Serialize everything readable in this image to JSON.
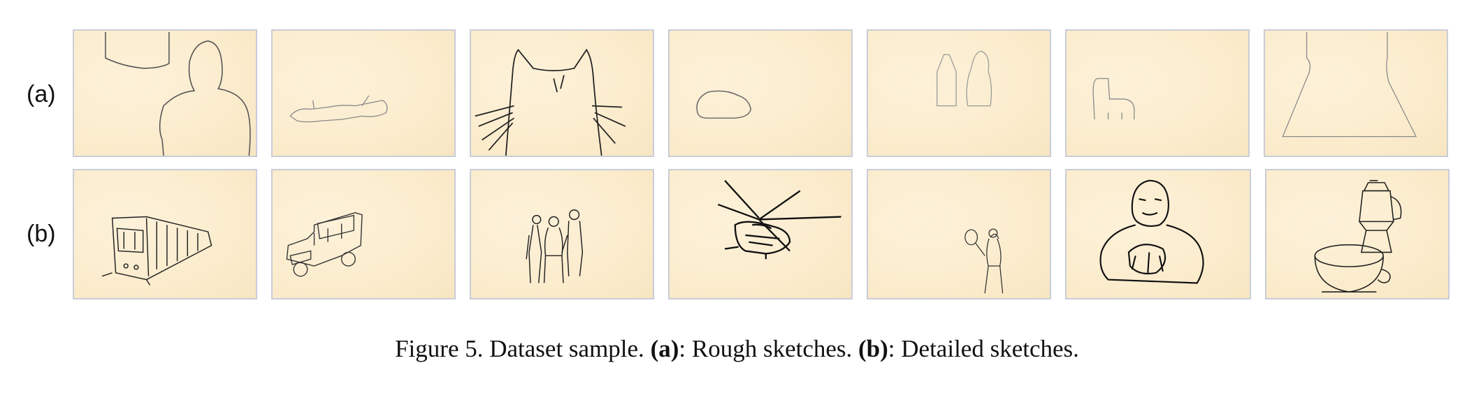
{
  "rows": [
    {
      "label": "(a)"
    },
    {
      "label": "(b)"
    }
  ],
  "caption": {
    "prefix": "Figure 5. Dataset sample. ",
    "a_tag": "(a)",
    "a_text": ": Rough sketches. ",
    "b_tag": "(b)",
    "b_text": ": Detailed sketches."
  }
}
